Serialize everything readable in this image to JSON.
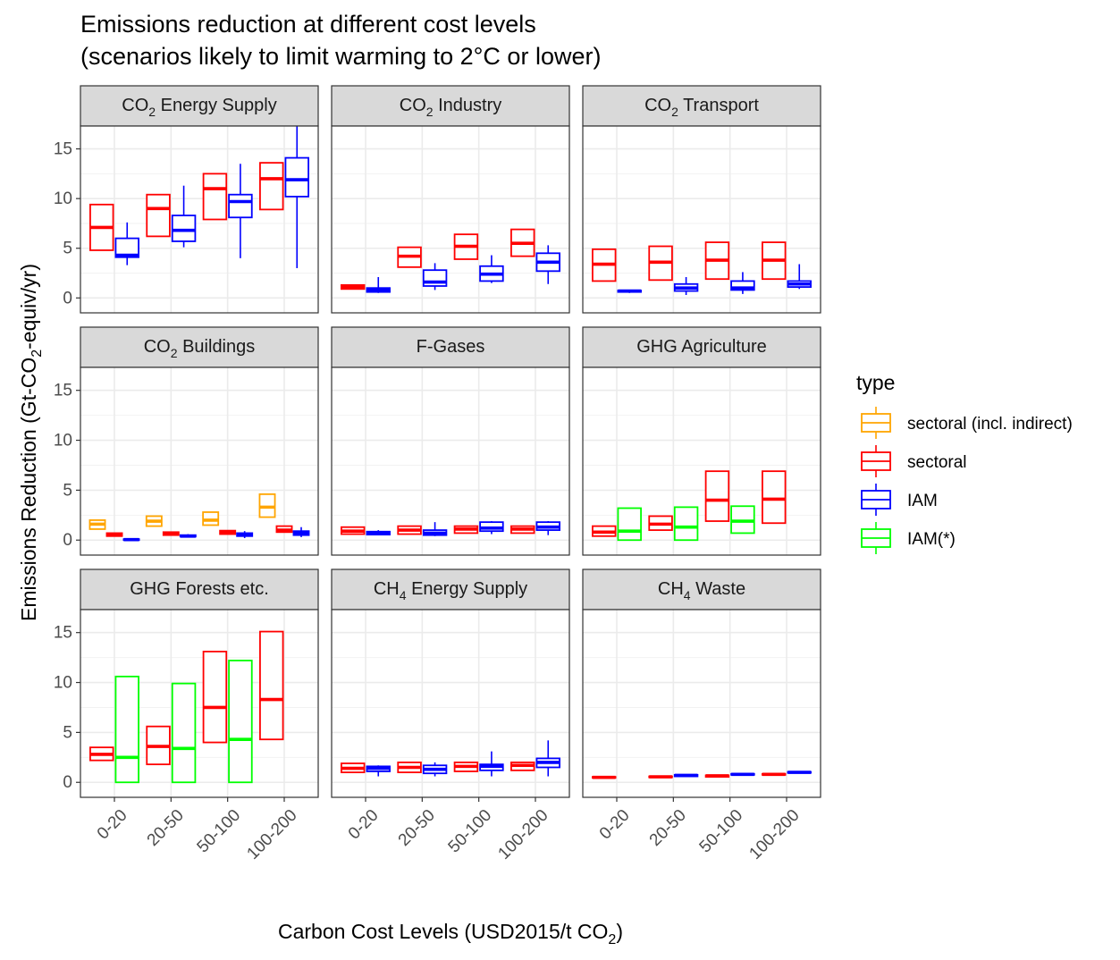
{
  "chart_data": {
    "type": "boxplot",
    "title": [
      "Emissions reduction at different cost levels",
      "(scenarios likely to limit warming to 2°C or lower)"
    ],
    "xlabel": "Carbon Cost Levels (USD2015/t CO",
    "xlabel_sub": "2",
    "xlabel_tail": ")",
    "ylabel": "Emissions Reduction (Gt-CO",
    "ylabel_sub": "2",
    "ylabel_tail": "-equiv/yr)",
    "categories": [
      "0-20",
      "20-50",
      "50-100",
      "100-200"
    ],
    "ylim": [
      -1.5,
      17.3
    ],
    "yticks": [
      0,
      5,
      10,
      15
    ],
    "grid": true,
    "legend": {
      "title": "type",
      "position": "right",
      "entries": [
        {
          "key": "sectoral_incl",
          "label": "sectoral (incl. indirect)",
          "color": "#FFA500"
        },
        {
          "key": "sectoral",
          "label": "sectoral",
          "color": "#FF0000"
        },
        {
          "key": "IAM",
          "label": "IAM",
          "color": "#0000FF"
        },
        {
          "key": "IAMstar",
          "label": "IAM(*)",
          "color": "#00FF00"
        }
      ]
    },
    "panels": [
      {
        "title_pre": "CO",
        "title_sub": "2",
        "title_post": " Energy Supply",
        "series": [
          {
            "type": "sectoral",
            "boxes": [
              [
                4.8,
                4.8,
                7.1,
                9.4,
                9.4
              ],
              [
                6.2,
                6.2,
                9.0,
                10.4,
                10.4
              ],
              [
                7.9,
                7.9,
                11.0,
                12.5,
                12.5
              ],
              [
                8.9,
                8.9,
                12.0,
                13.6,
                13.6
              ]
            ]
          },
          {
            "type": "IAM",
            "boxes": [
              [
                3.3,
                4.1,
                4.3,
                6.0,
                7.6
              ],
              [
                5.1,
                5.7,
                6.8,
                8.3,
                11.3
              ],
              [
                4.0,
                8.1,
                9.7,
                10.4,
                13.5
              ],
              [
                3.0,
                10.2,
                11.9,
                14.1,
                17.3
              ]
            ]
          }
        ]
      },
      {
        "title_pre": "CO",
        "title_sub": "2",
        "title_post": " Industry",
        "series": [
          {
            "type": "sectoral",
            "boxes": [
              [
                0.9,
                0.9,
                1.1,
                1.3,
                1.3
              ],
              [
                3.1,
                3.1,
                4.2,
                5.1,
                5.1
              ],
              [
                3.9,
                3.9,
                5.2,
                6.4,
                6.4
              ],
              [
                4.2,
                4.2,
                5.5,
                6.9,
                6.9
              ]
            ]
          },
          {
            "type": "IAM",
            "boxes": [
              [
                0.5,
                0.6,
                0.8,
                1.0,
                2.1
              ],
              [
                0.8,
                1.2,
                1.6,
                2.8,
                3.5
              ],
              [
                1.5,
                1.7,
                2.4,
                3.2,
                4.3
              ],
              [
                1.4,
                2.7,
                3.6,
                4.5,
                5.3
              ]
            ]
          }
        ]
      },
      {
        "title_pre": "CO",
        "title_sub": "2",
        "title_post": " Transport",
        "series": [
          {
            "type": "sectoral",
            "boxes": [
              [
                1.7,
                1.7,
                3.4,
                4.9,
                4.9
              ],
              [
                1.8,
                1.8,
                3.6,
                5.2,
                5.2
              ],
              [
                1.9,
                1.9,
                3.8,
                5.6,
                5.6
              ],
              [
                1.9,
                1.9,
                3.8,
                5.6,
                5.6
              ]
            ]
          },
          {
            "type": "IAM",
            "boxes": [
              [
                0.5,
                0.6,
                0.7,
                0.75,
                0.8
              ],
              [
                0.3,
                0.7,
                1.0,
                1.4,
                2.1
              ],
              [
                0.4,
                0.8,
                1.0,
                1.7,
                2.6
              ],
              [
                0.9,
                1.1,
                1.4,
                1.7,
                3.4
              ]
            ]
          }
        ]
      },
      {
        "title_pre": "CO",
        "title_sub": "2",
        "title_post": " Buildings",
        "series": [
          {
            "type": "sectoral_incl",
            "boxes": [
              [
                1.1,
                1.1,
                1.6,
                2.0,
                2.0
              ],
              [
                1.4,
                1.4,
                1.9,
                2.4,
                2.4
              ],
              [
                1.5,
                1.5,
                2.0,
                2.8,
                2.8
              ],
              [
                2.3,
                2.3,
                3.3,
                4.6,
                4.6
              ]
            ]
          },
          {
            "type": "sectoral",
            "boxes": [
              [
                0.4,
                0.4,
                0.55,
                0.7,
                0.7
              ],
              [
                0.5,
                0.5,
                0.7,
                0.8,
                0.8
              ],
              [
                0.6,
                0.6,
                0.8,
                0.95,
                0.95
              ],
              [
                0.8,
                0.8,
                1.0,
                1.4,
                1.4
              ]
            ]
          },
          {
            "type": "IAM",
            "boxes": [
              [
                0.0,
                0.0,
                0.05,
                0.1,
                0.1
              ],
              [
                0.3,
                0.35,
                0.4,
                0.5,
                0.6
              ],
              [
                0.2,
                0.4,
                0.5,
                0.7,
                0.9
              ],
              [
                0.3,
                0.5,
                0.7,
                0.9,
                1.3
              ]
            ]
          }
        ]
      },
      {
        "title_pre": "F-Gases",
        "title_sub": "",
        "title_post": "",
        "series": [
          {
            "type": "sectoral",
            "boxes": [
              [
                0.6,
                0.6,
                0.9,
                1.3,
                1.3
              ],
              [
                0.6,
                0.6,
                1.0,
                1.4,
                1.4
              ],
              [
                0.7,
                0.7,
                1.1,
                1.4,
                1.4
              ],
              [
                0.7,
                0.7,
                1.1,
                1.4,
                1.4
              ]
            ]
          },
          {
            "type": "IAM",
            "boxes": [
              [
                0.5,
                0.55,
                0.7,
                0.85,
                1.0
              ],
              [
                0.4,
                0.5,
                0.7,
                1.0,
                1.8
              ],
              [
                0.6,
                0.9,
                1.2,
                1.8,
                1.9
              ],
              [
                0.5,
                1.0,
                1.3,
                1.8,
                1.9
              ]
            ]
          }
        ]
      },
      {
        "title_pre": "GHG Agriculture",
        "title_sub": "",
        "title_post": "",
        "series": [
          {
            "type": "sectoral",
            "boxes": [
              [
                0.4,
                0.4,
                0.8,
                1.4,
                1.4
              ],
              [
                1.0,
                1.0,
                1.6,
                2.4,
                2.4
              ],
              [
                1.9,
                1.9,
                4.0,
                6.9,
                6.9
              ],
              [
                1.7,
                1.7,
                4.1,
                6.9,
                6.9
              ]
            ]
          },
          {
            "type": "IAMstar",
            "boxes": [
              [
                0.0,
                0.0,
                0.9,
                3.2,
                3.2
              ],
              [
                0.0,
                0.0,
                1.3,
                3.3,
                3.3
              ],
              [
                0.7,
                0.7,
                1.9,
                3.4,
                3.4
              ]
            ]
          }
        ]
      },
      {
        "title_pre": "GHG Forests etc.",
        "title_sub": "",
        "title_post": "",
        "series": [
          {
            "type": "sectoral",
            "boxes": [
              [
                2.2,
                2.2,
                2.8,
                3.5,
                3.5
              ],
              [
                1.8,
                1.8,
                3.6,
                5.6,
                5.6
              ],
              [
                4.0,
                4.0,
                7.5,
                13.1,
                13.1
              ],
              [
                4.3,
                4.3,
                8.3,
                15.1,
                15.1
              ]
            ]
          },
          {
            "type": "IAMstar",
            "boxes": [
              [
                0.0,
                0.0,
                2.5,
                10.6,
                10.6
              ],
              [
                0.0,
                0.0,
                3.4,
                9.9,
                9.9
              ],
              [
                0.0,
                0.0,
                4.3,
                12.2,
                12.2
              ]
            ]
          }
        ]
      },
      {
        "title_pre": "CH",
        "title_sub": "4",
        "title_post": " Energy Supply",
        "series": [
          {
            "type": "sectoral",
            "boxes": [
              [
                1.0,
                1.0,
                1.4,
                1.9,
                1.9
              ],
              [
                1.0,
                1.0,
                1.5,
                2.0,
                2.0
              ],
              [
                1.1,
                1.1,
                1.6,
                2.0,
                2.0
              ],
              [
                1.2,
                1.2,
                1.7,
                2.0,
                2.0
              ]
            ]
          },
          {
            "type": "IAM",
            "boxes": [
              [
                0.6,
                1.1,
                1.4,
                1.6,
                1.7
              ],
              [
                0.6,
                0.9,
                1.3,
                1.7,
                2.0
              ],
              [
                0.6,
                1.2,
                1.6,
                1.8,
                3.1
              ],
              [
                0.6,
                1.5,
                2.0,
                2.4,
                4.2
              ]
            ]
          }
        ]
      },
      {
        "title_pre": "CH",
        "title_sub": "4",
        "title_post": " Waste",
        "series": [
          {
            "type": "sectoral",
            "boxes": [
              [
                0.45,
                0.45,
                0.5,
                0.55,
                0.55
              ],
              [
                0.5,
                0.5,
                0.55,
                0.6,
                0.6
              ],
              [
                0.55,
                0.55,
                0.65,
                0.7,
                0.7
              ],
              [
                0.75,
                0.75,
                0.8,
                0.85,
                0.85
              ]
            ]
          },
          {
            "type": "IAM",
            "boxes": [
              [],
              [
                0.6,
                0.6,
                0.7,
                0.75,
                0.8
              ],
              [
                0.75,
                0.75,
                0.8,
                0.85,
                0.9
              ],
              [
                0.95,
                0.95,
                1.0,
                1.05,
                1.1
              ]
            ]
          }
        ]
      }
    ]
  }
}
